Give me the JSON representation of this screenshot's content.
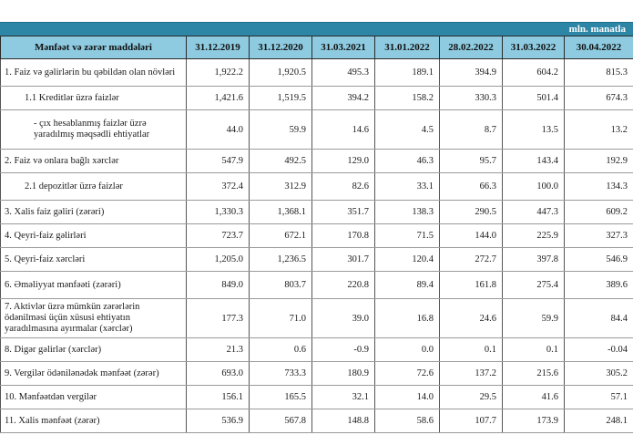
{
  "unit_label": "mln. manatla",
  "columns": [
    "Mənfəət və zərər maddələri",
    "31.12.2019",
    "31.12.2020",
    "31.03.2021",
    "31.01.2022",
    "28.02.2022",
    "31.03.2022",
    "30.04.2022"
  ],
  "rows": [
    {
      "label": "1. Faiz və gəlirlərin bu qəbildən olan növləri",
      "values": [
        "1,922.2",
        "1,920.5",
        "495.3",
        "189.1",
        "394.9",
        "604.2",
        "815.3"
      ]
    },
    {
      "label": "1.1 Kreditlər üzrə faizlər",
      "values": [
        "1,421.6",
        "1,519.5",
        "394.2",
        "158.2",
        "330.3",
        "501.4",
        "674.3"
      ]
    },
    {
      "label": "- çıx hesablanmış faizlər üzrə yaradılmış məqsədli ehtiyatlar",
      "values": [
        "44.0",
        "59.9",
        "14.6",
        "4.5",
        "8.7",
        "13.5",
        "13.2"
      ]
    },
    {
      "label": "2. Faiz və onlara bağlı xərclər",
      "values": [
        "547.9",
        "492.5",
        "129.0",
        "46.3",
        "95.7",
        "143.4",
        "192.9"
      ]
    },
    {
      "label": "2.1 depozitlər üzrə faizlər",
      "values": [
        "372.4",
        "312.9",
        "82.6",
        "33.1",
        "66.3",
        "100.0",
        "134.3"
      ]
    },
    {
      "label": "3. Xalis faiz gəliri (zərəri)",
      "values": [
        "1,330.3",
        "1,368.1",
        "351.7",
        "138.3",
        "290.5",
        "447.3",
        "609.2"
      ]
    },
    {
      "label": "4. Qeyri-faiz gəlirləri",
      "values": [
        "723.7",
        "672.1",
        "170.8",
        "71.5",
        "144.0",
        "225.9",
        "327.3"
      ]
    },
    {
      "label": "5. Qeyri-faiz xərcləri",
      "values": [
        "1,205.0",
        "1,236.5",
        "301.7",
        "120.4",
        "272.7",
        "397.8",
        "546.9"
      ]
    },
    {
      "label": "6. Əməliyyat mənfəəti (zərəri)",
      "values": [
        "849.0",
        "803.7",
        "220.8",
        "89.4",
        "161.8",
        "275.4",
        "389.6"
      ]
    },
    {
      "label": "7. Aktivlər üzrə mümkün zərərlərin ödənilməsi üçün xüsusi ehtiyatın yaradılmasına ayırmalar (xərclər)",
      "values": [
        "177.3",
        "71.0",
        "39.0",
        "16.8",
        "24.6",
        "59.9",
        "84.4"
      ]
    },
    {
      "label": "8. Digər gəlirlər (xərclər)",
      "values": [
        "21.3",
        "0.6",
        "-0.9",
        "0.0",
        "0.1",
        "0.1",
        "-0.04"
      ]
    },
    {
      "label": "9. Vergilər ödənilənədək mənfəət (zərər)",
      "values": [
        "693.0",
        "733.3",
        "180.9",
        "72.6",
        "137.2",
        "215.6",
        "305.2"
      ]
    },
    {
      "label": "10. Mənfəətdən vergilər",
      "values": [
        "156.1",
        "165.5",
        "32.1",
        "14.0",
        "29.5",
        "41.6",
        "57.1"
      ]
    },
    {
      "label": "11. Xalis mənfəət (zərər)",
      "values": [
        "536.9",
        "567.8",
        "148.8",
        "58.6",
        "107.7",
        "173.9",
        "248.1"
      ]
    }
  ]
}
